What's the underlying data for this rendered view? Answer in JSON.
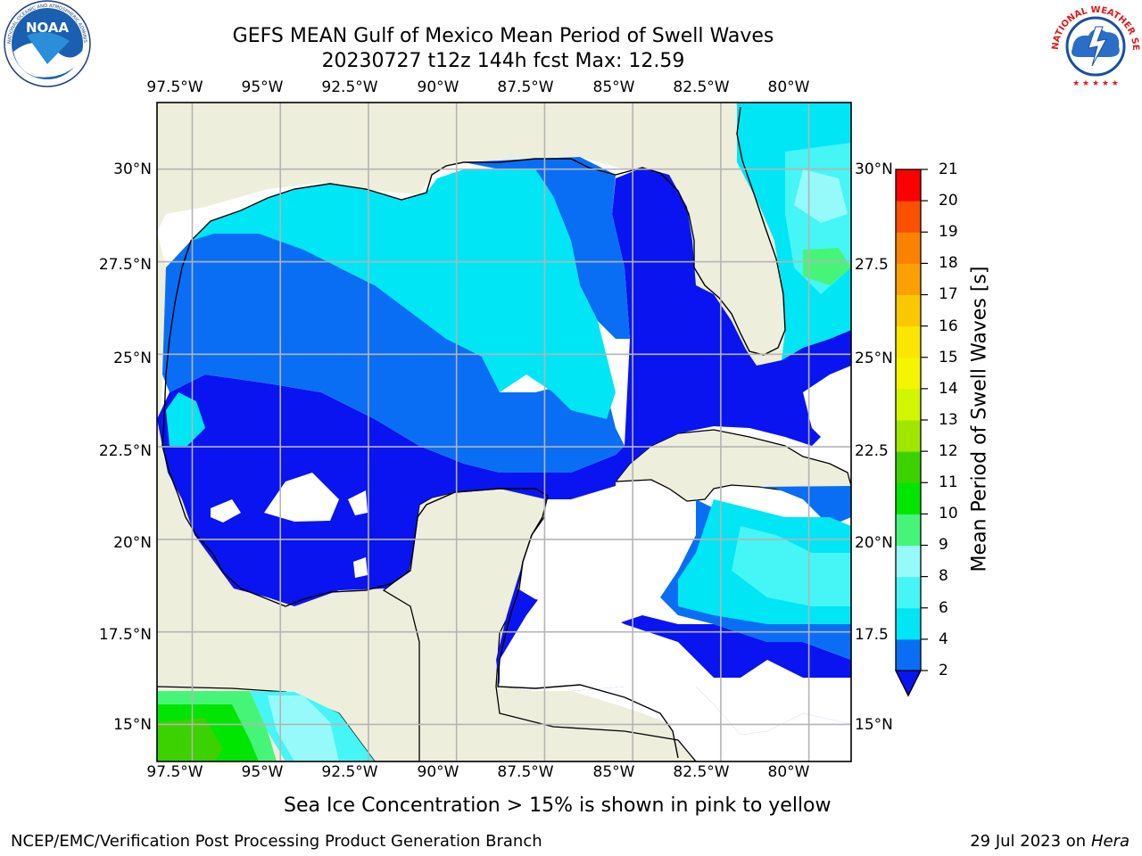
{
  "title": {
    "line1": "GEFS MEAN Gulf of Mexico Mean Period of Swell Waves",
    "line2": "20230727 t12z 144h fcst   Max: 12.59"
  },
  "map": {
    "projection": "plate carree",
    "lon_range": [
      -98.5,
      -78.8
    ],
    "lat_range": [
      14.0,
      31.8
    ],
    "grid": true,
    "land_color": "#eeeedc",
    "ocean_missing_color": "#ffffff",
    "lon_ticks": [
      "97.5°W",
      "95°W",
      "92.5°W",
      "90°W",
      "87.5°W",
      "85°W",
      "82.5°W",
      "80°W"
    ],
    "lat_ticks_left": [
      "30°N",
      "27.5°N",
      "25°N",
      "22.5°N",
      "20°N",
      "17.5°N",
      "15°N"
    ],
    "lat_ticks_right": [
      "30°N",
      "27.5",
      "25°N",
      "22.5",
      "20°N",
      "17.5",
      "15°N"
    ]
  },
  "colorbar": {
    "label": "Mean Period of Swell Waves [s]",
    "ticks": [
      "2",
      "4",
      "6",
      "8",
      "9",
      "10",
      "11",
      "12",
      "13",
      "14",
      "15",
      "16",
      "17",
      "18",
      "19",
      "20",
      "21"
    ],
    "colors": [
      "#0a6ef5",
      "#00e6f5",
      "#46f5f5",
      "#96fafa",
      "#46f578",
      "#00e600",
      "#3cd200",
      "#a0e600",
      "#d2f500",
      "#f5f500",
      "#fae600",
      "#fac800",
      "#faa000",
      "#fa8200",
      "#fa5000",
      "#fa0000"
    ],
    "extend_low_color": "#0a14f0"
  },
  "field_colors": {
    "lt2": "#0a14f0",
    "c2_4": "#0a6ef5",
    "c4_6": "#00e6f5",
    "c6_8": "#46f5f5",
    "c8_9": "#96fafa",
    "c9_10": "#46f578",
    "c10_11": "#00e600",
    "c11_12": "#3cd200"
  },
  "logos": {
    "noaa": "NOAA",
    "noaa_ring": "NATIONAL OCEANIC AND ATMOSPHERIC ADMINISTRATION · U.S. DEPARTMENT OF COMMERCE",
    "nws_ring": "NATIONAL WEATHER SERVICE"
  },
  "footer": {
    "note": "Sea Ice Concentration > 15% is shown in pink to yellow",
    "left": "NCEP/EMC/Verification Post Processing Product Generation Branch",
    "right_date": "29 Jul 2023 on ",
    "right_machine": "Hera"
  }
}
